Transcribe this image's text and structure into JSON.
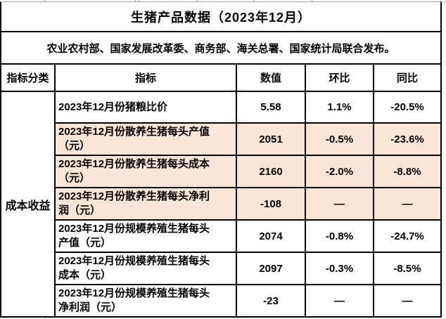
{
  "title": "生猪产品数据（2023年12月）",
  "subtitle": "农业农村部、国家发展改革委、商务部、海关总署、国家统计局联合发布。",
  "columns": {
    "category": "指标分类",
    "indicator": "指标",
    "value": "数值",
    "mom": "环比",
    "yoy": "同比"
  },
  "category_group": "成本收益",
  "rows": [
    {
      "indicator": "2023年12月份猪粮比价",
      "value": "5.58",
      "mom": "1.1%",
      "yoy": "-20.5%",
      "highlight": false
    },
    {
      "indicator": "2023年12月份散养生猪每头产值\n（元）",
      "value": "2051",
      "mom": "-0.5%",
      "yoy": "-23.6%",
      "highlight": true
    },
    {
      "indicator": "2023年12月份散养生猪每头成本\n（元）",
      "value": "2160",
      "mom": "-2.0%",
      "yoy": "-8.8%",
      "highlight": true
    },
    {
      "indicator": "2023年12月份散养生猪每头净利\n润（元）",
      "value": "-108",
      "mom": "—",
      "yoy": "—",
      "highlight": true
    },
    {
      "indicator": "2023年12月份规模养殖生猪每头\n产值（元）",
      "value": "2074",
      "mom": "-0.8%",
      "yoy": "-24.7%",
      "highlight": false
    },
    {
      "indicator": "2023年12月份规模养殖生猪每头\n成本（元）",
      "value": "2097",
      "mom": "-0.3%",
      "yoy": "-8.5%",
      "highlight": false
    },
    {
      "indicator": "2023年12月份规模养殖生猪每头\n净利润（元）",
      "value": "-23",
      "mom": "—",
      "yoy": "—",
      "highlight": false
    }
  ],
  "colors": {
    "highlight_bg": "#fbe5d6",
    "border": "#000000",
    "gridline": "#a6a6a6",
    "text": "#000000",
    "background": "#ffffff"
  }
}
